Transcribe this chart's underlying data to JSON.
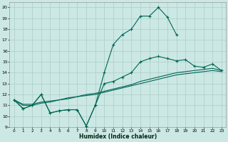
{
  "xlabel": "Humidex (Indice chaleur)",
  "bg_color": "#cce8e4",
  "grid_color": "#aaccc8",
  "line_color": "#006655",
  "xlim": [
    -0.5,
    23.5
  ],
  "ylim": [
    9,
    20.5
  ],
  "yticks": [
    9,
    10,
    11,
    12,
    13,
    14,
    15,
    16,
    17,
    18,
    19,
    20
  ],
  "xticks": [
    0,
    1,
    2,
    3,
    4,
    5,
    6,
    7,
    8,
    9,
    10,
    11,
    12,
    13,
    14,
    15,
    16,
    17,
    18,
    19,
    20,
    21,
    22,
    23
  ],
  "line1_x": [
    0,
    1,
    2,
    3,
    4,
    5,
    6,
    7,
    8,
    9,
    10,
    11,
    12,
    13,
    14,
    15,
    16,
    17,
    18
  ],
  "line1_y": [
    11.5,
    10.7,
    11.0,
    12.0,
    10.3,
    10.5,
    10.6,
    10.6,
    9.1,
    11.0,
    14.0,
    16.6,
    17.5,
    18.0,
    19.2,
    19.2,
    20.0,
    19.1,
    17.5
  ],
  "line2_x": [
    0,
    1,
    2,
    3,
    4,
    5,
    6,
    7,
    8,
    9,
    10,
    11,
    12,
    13,
    14,
    15,
    16,
    17,
    18,
    19,
    20,
    21,
    22,
    23
  ],
  "line2_y": [
    11.5,
    10.7,
    11.0,
    12.0,
    10.3,
    10.5,
    10.6,
    10.6,
    9.1,
    11.0,
    13.0,
    13.2,
    13.6,
    14.0,
    15.0,
    15.3,
    15.5,
    15.3,
    15.1,
    15.2,
    14.6,
    14.5,
    14.8,
    14.2
  ],
  "line3_x": [
    0,
    1,
    2,
    3,
    4,
    5,
    6,
    7,
    8,
    9,
    10,
    11,
    12,
    13,
    14,
    15,
    16,
    17,
    18,
    19,
    20,
    21,
    22,
    23
  ],
  "line3_y": [
    11.5,
    11.1,
    11.1,
    11.3,
    11.4,
    11.5,
    11.7,
    11.8,
    12.0,
    12.1,
    12.3,
    12.5,
    12.7,
    12.9,
    13.2,
    13.4,
    13.6,
    13.8,
    14.0,
    14.1,
    14.2,
    14.3,
    14.4,
    14.2
  ],
  "line4_x": [
    0,
    1,
    2,
    3,
    4,
    5,
    6,
    7,
    8,
    9,
    10,
    11,
    12,
    13,
    14,
    15,
    16,
    17,
    18,
    19,
    20,
    21,
    22,
    23
  ],
  "line4_y": [
    11.5,
    11.0,
    11.0,
    11.2,
    11.3,
    11.5,
    11.6,
    11.8,
    11.9,
    12.0,
    12.2,
    12.4,
    12.6,
    12.8,
    13.0,
    13.2,
    13.4,
    13.6,
    13.8,
    13.9,
    14.0,
    14.1,
    14.2,
    14.1
  ]
}
